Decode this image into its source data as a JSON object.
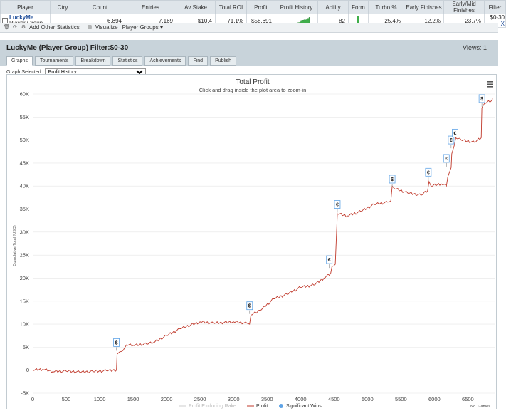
{
  "table": {
    "headers": [
      "Player",
      "Ctry",
      "Count",
      "Entries",
      "Av Stake",
      "Total ROI",
      "Profit",
      "Profit History",
      "Ability",
      "Form",
      "Turbo %",
      "Early Finishes",
      "Early/Mid Finishes",
      "Filter"
    ],
    "row": {
      "player_name": "LuckyMe",
      "player_sub": "Player Group",
      "ctry": "",
      "count": "6,894",
      "entries": "7,169",
      "av_stake": "$10.4",
      "total_roi": "71.1%",
      "profit": "$58,691",
      "ability": "82",
      "form_level": 0.95,
      "turbo": "25.4%",
      "early": "12.2%",
      "early_mid": "23.7%",
      "filter": "$0-30",
      "x_link": "X"
    }
  },
  "toolbar": {
    "add_stats": "Add Other Statistics",
    "visualize": "Visualize",
    "player_groups": "Player Groups"
  },
  "header": {
    "title": "LuckyMe (Player Group) Filter:$0-30",
    "views": "Views: 1"
  },
  "tabs": [
    "Graphs",
    "Tournaments",
    "Breakdown",
    "Statistics",
    "Achievements",
    "Find",
    "Publish"
  ],
  "graph_selected": {
    "label": "Graph Selected:",
    "value": "Profit History"
  },
  "colors": {
    "profit_line": "#c0392b",
    "band": "#c8d3da",
    "accent": "#1f4e9a",
    "sig_wins": "#5ea3e6",
    "spark": "#3fae4a"
  },
  "chart_data": {
    "type": "line",
    "title": "Total Profit",
    "subtitle": "Click and drag inside the plot area to zoom-in",
    "ylabel": "Cumulative Total (USD)",
    "xlabel": "No. Games",
    "xlim": [
      0,
      6900
    ],
    "ylim": [
      -5000,
      60000
    ],
    "x_ticks": [
      "0",
      "500",
      "1000",
      "1500",
      "2000",
      "2500",
      "3000",
      "3500",
      "4000",
      "4500",
      "5000",
      "5500",
      "6000",
      "6500"
    ],
    "y_ticks": [
      "-5K",
      "0",
      "5K",
      "10K",
      "15K",
      "20K",
      "25K",
      "30K",
      "35K",
      "40K",
      "45K",
      "50K",
      "55K",
      "60K"
    ],
    "legend": [
      "Profit Excluding Rake",
      "Profit",
      "Significant Wins"
    ],
    "series": [
      {
        "name": "Profit",
        "x": [
          0,
          150,
          300,
          500,
          700,
          900,
          1100,
          1250,
          1260,
          1300,
          1350,
          1400,
          1500,
          1700,
          1800,
          2000,
          2200,
          2500,
          2700,
          3000,
          3200,
          3240,
          3260,
          3400,
          3600,
          3800,
          4000,
          4200,
          4350,
          4450,
          4470,
          4520,
          4550,
          4700,
          4900,
          5100,
          5300,
          5350,
          5370,
          5400,
          5600,
          5800,
          5900,
          5920,
          5950,
          6100,
          6180,
          6200,
          6250,
          6260,
          6300,
          6320,
          6400,
          6600,
          6700,
          6710,
          6750,
          6850,
          6870
        ],
        "y": [
          0,
          200,
          -300,
          -200,
          -400,
          -300,
          -100,
          0,
          3500,
          4000,
          4300,
          5500,
          5400,
          5700,
          6000,
          7500,
          9000,
          10500,
          10200,
          10500,
          10200,
          10000,
          12000,
          13000,
          15500,
          16500,
          18000,
          18500,
          20000,
          21000,
          22500,
          23000,
          34000,
          33500,
          34500,
          36000,
          36500,
          36800,
          40000,
          39500,
          38500,
          38000,
          39000,
          41000,
          40000,
          40500,
          40000,
          42000,
          44000,
          47000,
          49000,
          50500,
          50000,
          49500,
          50500,
          57000,
          58000,
          58500,
          59000
        ]
      }
    ],
    "significant_wins": [
      {
        "x": 1250,
        "y": 5000,
        "label": "$"
      },
      {
        "x": 3240,
        "y": 13000,
        "label": "$"
      },
      {
        "x": 4430,
        "y": 23000,
        "label": "€"
      },
      {
        "x": 4550,
        "y": 35000,
        "label": "€"
      },
      {
        "x": 5370,
        "y": 40500,
        "label": "$"
      },
      {
        "x": 5910,
        "y": 42000,
        "label": "€"
      },
      {
        "x": 6180,
        "y": 45000,
        "label": "€"
      },
      {
        "x": 6250,
        "y": 49000,
        "label": "€"
      },
      {
        "x": 6310,
        "y": 50500,
        "label": "€"
      },
      {
        "x": 6710,
        "y": 58000,
        "label": "$"
      }
    ]
  }
}
